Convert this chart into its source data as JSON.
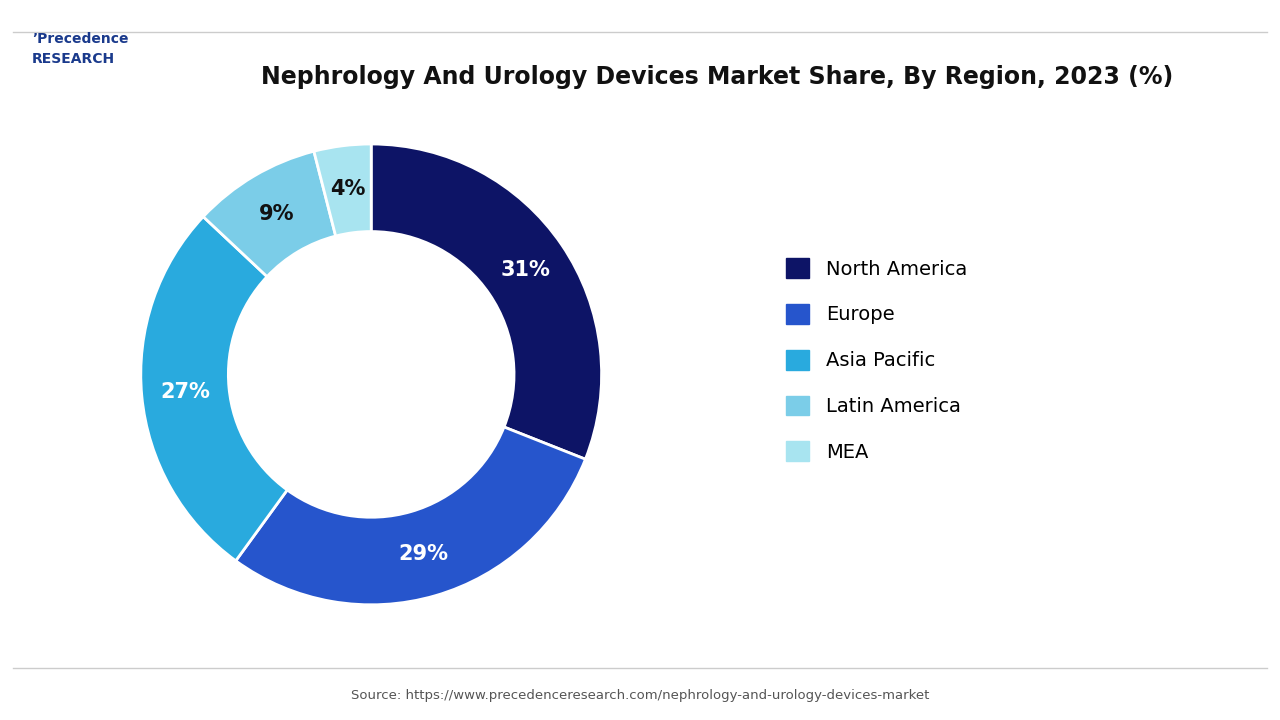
{
  "title": "Nephrology And Urology Devices Market Share, By Region, 2023 (%)",
  "labels": [
    "North America",
    "Europe",
    "Asia Pacific",
    "Latin America",
    "MEA"
  ],
  "values": [
    31,
    29,
    27,
    9,
    4
  ],
  "colors": [
    "#0d1466",
    "#2655cc",
    "#29aade",
    "#7bcde8",
    "#a8e4f0"
  ],
  "pct_labels": [
    "31%",
    "29%",
    "27%",
    "9%",
    "4%"
  ],
  "source_text": "Source: https://www.precedenceresearch.com/nephrology-and-urology-devices-market",
  "background_color": "#ffffff",
  "title_fontsize": 17,
  "legend_fontsize": 14,
  "pct_fontsize": 15,
  "wedge_linewidth": 2.0,
  "donut_width": 0.38,
  "start_angle": 90
}
